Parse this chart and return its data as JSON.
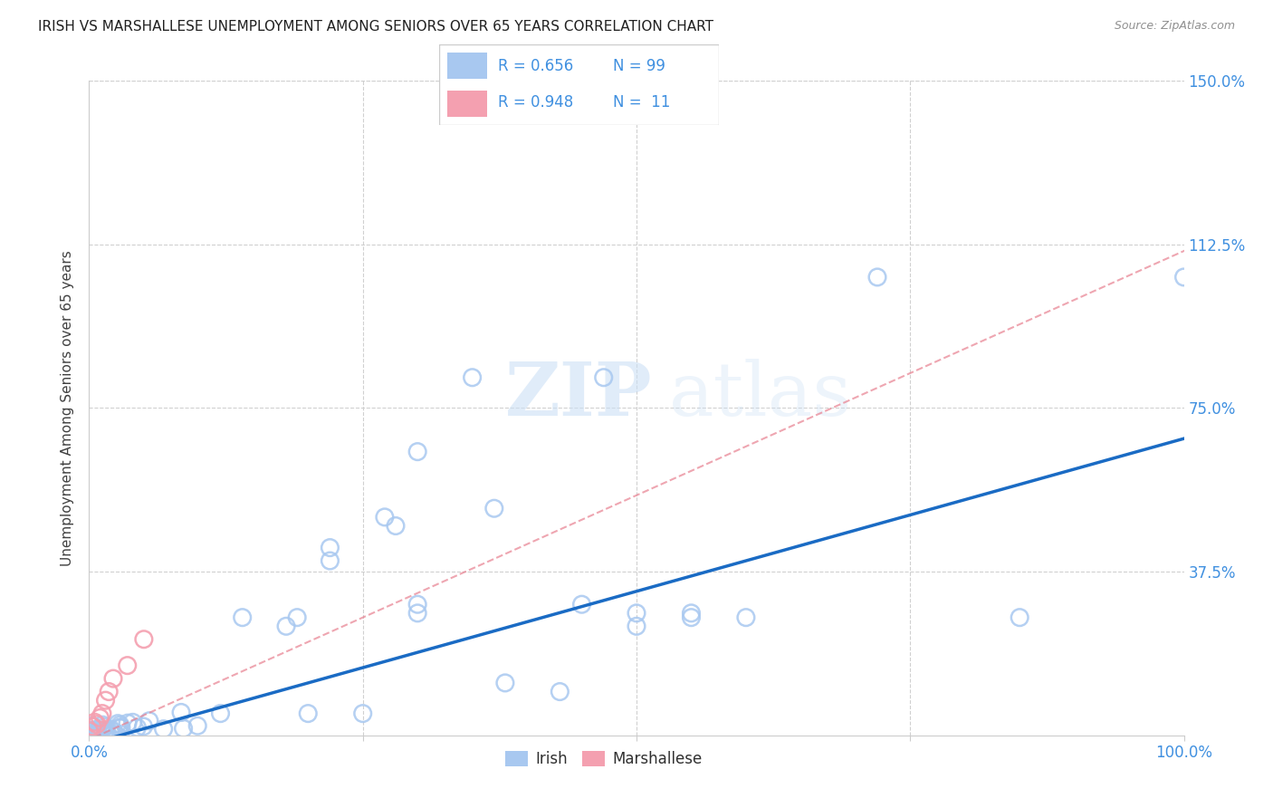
{
  "title": "IRISH VS MARSHALLESE UNEMPLOYMENT AMONG SENIORS OVER 65 YEARS CORRELATION CHART",
  "source": "Source: ZipAtlas.com",
  "ylabel": "Unemployment Among Seniors over 65 years",
  "xlim": [
    0,
    1.0
  ],
  "ylim": [
    0,
    1.5
  ],
  "yticks": [
    0.0,
    0.375,
    0.75,
    1.125,
    1.5
  ],
  "yticklabels": [
    "",
    "37.5%",
    "75.0%",
    "112.5%",
    "150.0%"
  ],
  "irish_color": "#a8c8f0",
  "marshallese_color": "#f4a0b0",
  "irish_line_color": "#1a6bc4",
  "marshallese_line_color": "#e88090",
  "grid_color": "#d0d0d0",
  "title_color": "#202020",
  "tick_color": "#4090e0",
  "watermark_zip": "ZIP",
  "watermark_atlas": "atlas",
  "legend_r1": "R = 0.656",
  "legend_n1": "N = 99",
  "legend_r2": "R = 0.948",
  "legend_n2": "N =  11",
  "irish_reg_slope": 0.7,
  "irish_reg_intercept": -0.02,
  "marsh_reg_slope": 1.12,
  "marsh_reg_intercept": -0.01
}
